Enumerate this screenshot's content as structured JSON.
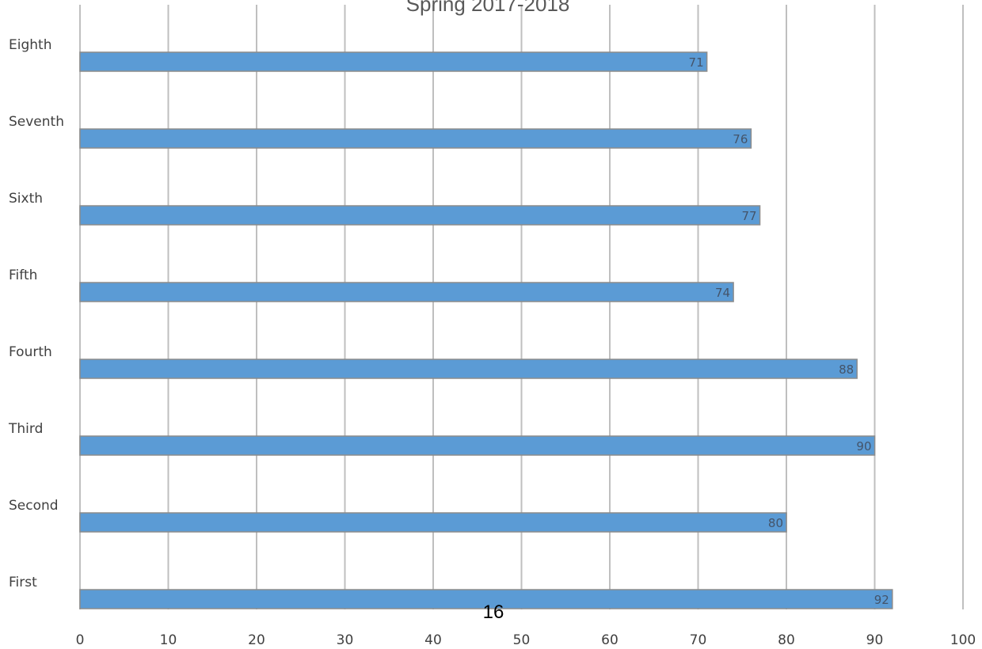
{
  "chart_data": {
    "type": "bar",
    "orientation": "horizontal",
    "title": "Spring 2017-2018",
    "categories": [
      "First",
      "Second",
      "Third",
      "Fourth",
      "Fifth",
      "Sixth",
      "Seventh",
      "Eighth"
    ],
    "values": [
      92,
      80,
      90,
      88,
      74,
      77,
      76,
      71
    ],
    "xlim": [
      0,
      100
    ],
    "xticks": [
      0,
      10,
      20,
      30,
      40,
      50,
      60,
      70,
      80,
      90,
      100
    ],
    "xlabel": "",
    "ylabel": "",
    "grid": "vertical",
    "legend": "none",
    "data_labels": true,
    "bar_color": "#5b9bd5",
    "bar_edge_color": "#8c8c8c",
    "gridline_color": "#bfbfbf"
  },
  "page_number": "16"
}
